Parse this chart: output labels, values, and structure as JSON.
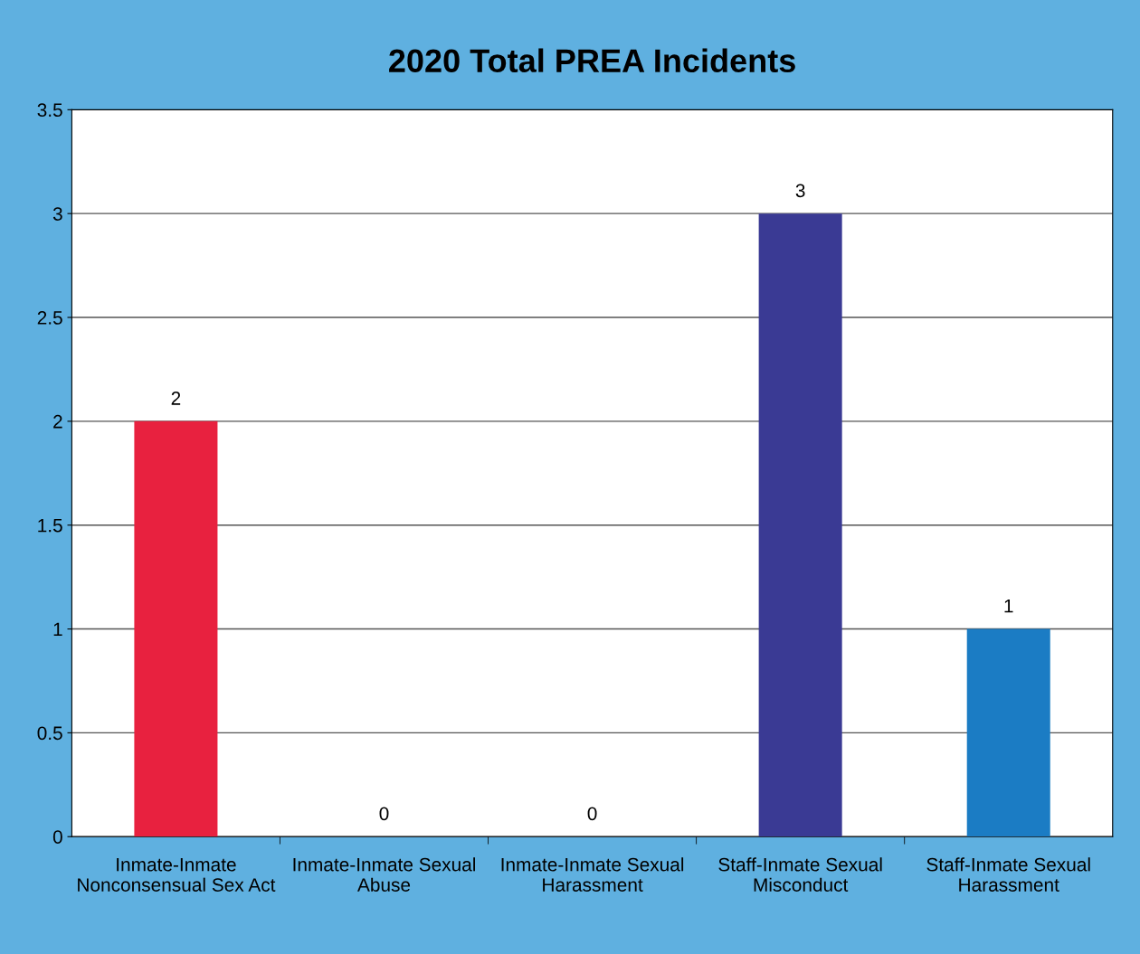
{
  "chart_data": {
    "type": "bar",
    "title": "2020 Total PREA Incidents",
    "categories": [
      "Inmate-Inmate Nonconsensual Sex Act",
      "Inmate-Inmate Sexual Abuse",
      "Inmate-Inmate Sexual Harassment",
      "Staff-Inmate Sexual Misconduct",
      "Staff-Inmate Sexual Harassment"
    ],
    "values": [
      2,
      0,
      0,
      3,
      1
    ],
    "colors": [
      "#e8213f",
      "#3b4fc0",
      "#3b4fc0",
      "#3a3a94",
      "#1b7cc4"
    ],
    "ylim": [
      0,
      3.5
    ],
    "yticks": [
      0,
      0.5,
      1,
      1.5,
      2,
      2.5,
      3,
      3.5
    ],
    "grid": "y",
    "data_labels": true,
    "legend": false
  }
}
